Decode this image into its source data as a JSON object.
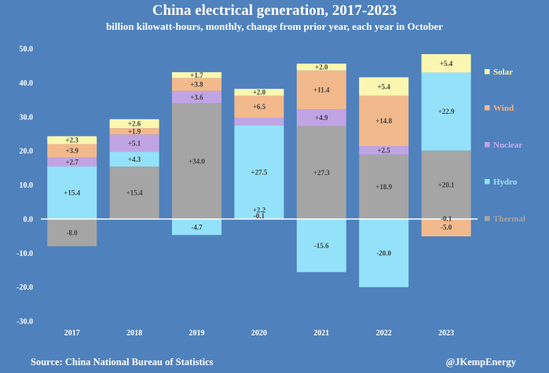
{
  "header": {
    "title": "China electrical generation, 2017-2023",
    "subtitle": "billion kilowatt-hours, monthly, change from prior year, each year in October"
  },
  "footer": {
    "source": "Source: China National Bureau of Statistics",
    "credit": "@JKempEnergy"
  },
  "colors": {
    "background": "#4f81bd",
    "Thermal": "#a5a5a5",
    "Hydro": "#93e2fa",
    "Nuclear": "#c1a4e4",
    "Wind": "#f2b98c",
    "Solar": "#fbf7b0",
    "axis": "#ffffff",
    "label_text": "#404040",
    "legend_text": {
      "Thermal": "#a5a5a5",
      "Hydro": "#9ee6ff",
      "Nuclear": "#c9abf0",
      "Wind": "#f4b183",
      "Solar": "#fdf6a6"
    }
  },
  "chart_data": {
    "type": "bar",
    "stacked": true,
    "categories": [
      "2017",
      "2018",
      "2019",
      "2020",
      "2021",
      "2022",
      "2023"
    ],
    "ylim": [
      -30,
      50
    ],
    "yticks": [
      "50.0",
      "40.0",
      "30.0",
      "20.0",
      "10.0",
      "0.0",
      "-10.0",
      "-20.0",
      "-30.0"
    ],
    "legend": [
      "Solar",
      "Wind",
      "Nuclear",
      "Hydro",
      "Thermal"
    ],
    "legend_position": "right",
    "grid": false,
    "series": [
      {
        "name": "Thermal",
        "values": [
          -8.0,
          15.4,
          34.0,
          -0.1,
          27.3,
          18.9,
          20.1
        ],
        "labels": [
          "-8.0",
          "+15.4",
          "+34.0",
          "-0.1",
          "+27.3",
          "+18.9",
          "+20.1"
        ]
      },
      {
        "name": "Hydro",
        "values": [
          15.4,
          4.3,
          -4.7,
          27.5,
          -15.6,
          -20.0,
          22.9
        ],
        "labels": [
          "+15.4",
          "+4.3",
          "-4.7",
          "+27.5",
          "-15.6",
          "-20.0",
          "+22.9"
        ]
      },
      {
        "name": "Nuclear",
        "values": [
          2.7,
          5.1,
          3.6,
          2.2,
          4.9,
          2.5,
          -0.1
        ],
        "labels": [
          "+2.7",
          "+5.1",
          "+3.6",
          "+2.2",
          "+4.9",
          "+2.5",
          "-0.1"
        ]
      },
      {
        "name": "Wind",
        "values": [
          3.9,
          1.9,
          3.8,
          6.5,
          11.4,
          14.8,
          -5.0
        ],
        "labels": [
          "+3.9",
          "+1.9",
          "+3.8",
          "+6.5",
          "+11.4",
          "+14.8",
          "-5.0"
        ]
      },
      {
        "name": "Solar",
        "values": [
          2.3,
          2.6,
          1.7,
          2.0,
          2.0,
          5.4,
          5.4
        ],
        "labels": [
          "+2.3",
          "+2.6",
          "+1.7",
          "+2.0",
          "+2.0",
          "+5.4",
          "+5.4"
        ]
      }
    ]
  }
}
